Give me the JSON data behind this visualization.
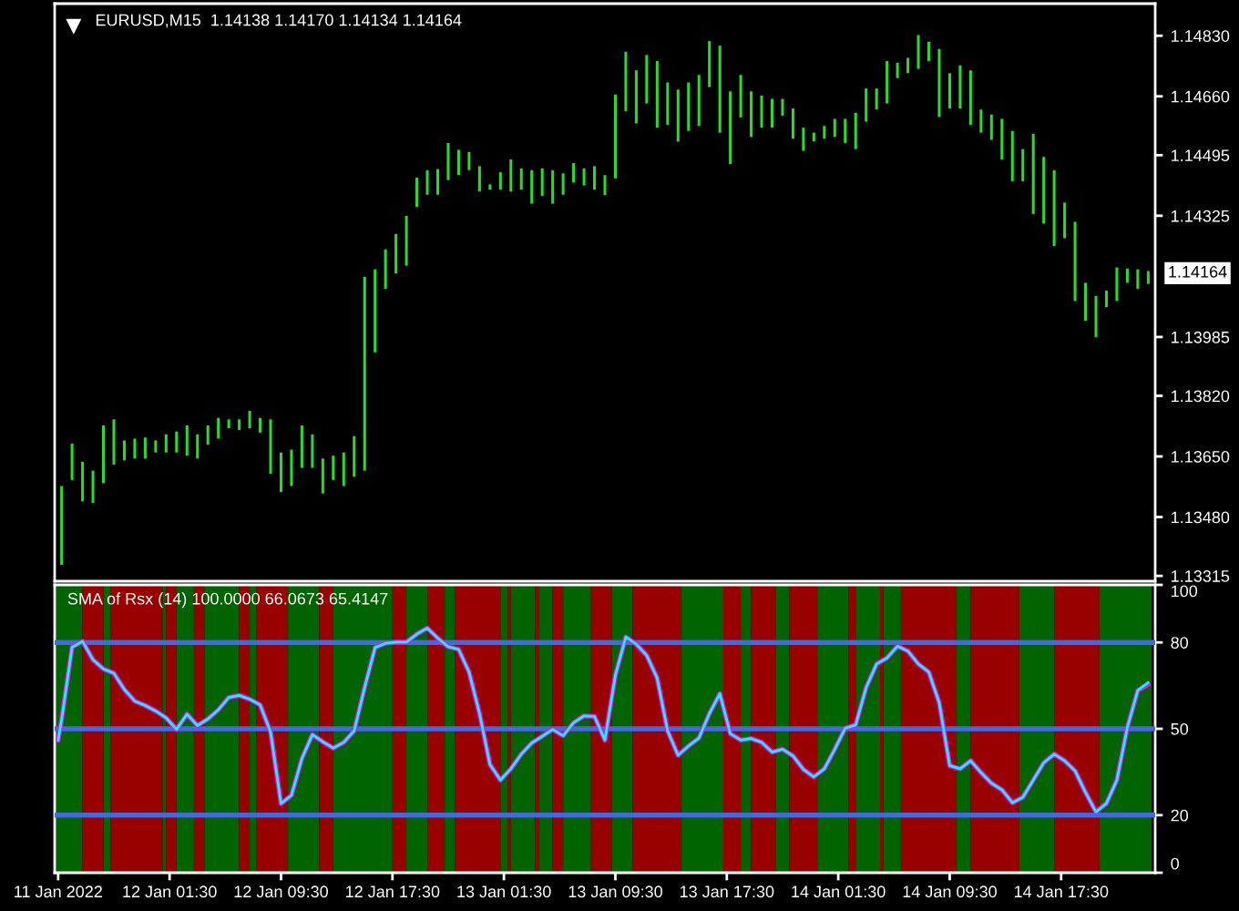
{
  "chart_data": [
    {
      "type": "bar",
      "title": "EURUSD,M15  1.14138 1.14170 1.14134 1.14164",
      "color": "#28dc28",
      "x": [
        "2022-01-11T17:45",
        "2022-01-11T18:30",
        "2022-01-11T19:15",
        "2022-01-11T20:00",
        "2022-01-11T20:45",
        "2022-01-11T21:30",
        "2022-01-11T22:15",
        "2022-01-11T23:00",
        "2022-01-11T23:45",
        "2022-01-12T00:30",
        "2022-01-12T01:15",
        "2022-01-12T02:00",
        "2022-01-12T02:45",
        "2022-01-12T03:30",
        "2022-01-12T04:15",
        "2022-01-12T05:00",
        "2022-01-12T05:45",
        "2022-01-12T06:30",
        "2022-01-12T07:15",
        "2022-01-12T08:00",
        "2022-01-12T08:45",
        "2022-01-12T09:30",
        "2022-01-12T10:15",
        "2022-01-12T11:00",
        "2022-01-12T11:45",
        "2022-01-12T12:30",
        "2022-01-12T13:15",
        "2022-01-12T14:00",
        "2022-01-12T14:45",
        "2022-01-12T15:30",
        "2022-01-12T16:15",
        "2022-01-12T17:00",
        "2022-01-12T17:45",
        "2022-01-12T18:30",
        "2022-01-12T19:15",
        "2022-01-12T20:00",
        "2022-01-12T20:45",
        "2022-01-12T21:30",
        "2022-01-12T22:15",
        "2022-01-12T23:00",
        "2022-01-12T23:45",
        "2022-01-13T00:30",
        "2022-01-13T01:15",
        "2022-01-13T02:00",
        "2022-01-13T02:45",
        "2022-01-13T03:30",
        "2022-01-13T04:15",
        "2022-01-13T05:00",
        "2022-01-13T05:45",
        "2022-01-13T06:30",
        "2022-01-13T07:15",
        "2022-01-13T08:00",
        "2022-01-13T08:45",
        "2022-01-13T09:30",
        "2022-01-13T10:15",
        "2022-01-13T11:00",
        "2022-01-13T11:45",
        "2022-01-13T12:30",
        "2022-01-13T13:15",
        "2022-01-13T14:00",
        "2022-01-13T14:45",
        "2022-01-13T15:30",
        "2022-01-13T16:15",
        "2022-01-13T17:00",
        "2022-01-13T17:45",
        "2022-01-13T18:30",
        "2022-01-13T19:15",
        "2022-01-13T20:00",
        "2022-01-13T20:45",
        "2022-01-13T21:30",
        "2022-01-13T22:15",
        "2022-01-13T23:00",
        "2022-01-13T23:45",
        "2022-01-14T00:30",
        "2022-01-14T01:15",
        "2022-01-14T02:00",
        "2022-01-14T02:45",
        "2022-01-14T03:30",
        "2022-01-14T04:15",
        "2022-01-14T05:00",
        "2022-01-14T05:45",
        "2022-01-14T06:30",
        "2022-01-14T07:15",
        "2022-01-14T08:00",
        "2022-01-14T08:45",
        "2022-01-14T09:30",
        "2022-01-14T10:15",
        "2022-01-14T11:00",
        "2022-01-14T11:45",
        "2022-01-14T12:30",
        "2022-01-14T13:15",
        "2022-01-14T14:00",
        "2022-01-14T14:45",
        "2022-01-14T15:30",
        "2022-01-14T16:15",
        "2022-01-14T17:00",
        "2022-01-14T17:45",
        "2022-01-14T18:30",
        "2022-01-14T19:15",
        "2022-01-14T20:00",
        "2022-01-14T20:45",
        "2022-01-14T21:30",
        "2022-01-14T22:15",
        "2022-01-14T23:00",
        "2022-01-14T23:45"
      ],
      "base": [
        1.13346,
        1.13584,
        1.13524,
        1.13519,
        1.13575,
        1.13627,
        1.13639,
        1.13644,
        1.13644,
        1.13661,
        1.13661,
        1.13661,
        1.13652,
        1.13644,
        1.13683,
        1.137,
        1.13729,
        1.13724,
        1.13729,
        1.13717,
        1.13601,
        1.1355,
        1.13567,
        1.13618,
        1.13618,
        1.13546,
        1.13584,
        1.13567,
        1.13593,
        1.1361,
        1.13942,
        1.1412,
        1.14163,
        1.14185,
        1.1435,
        1.14384,
        1.14384,
        1.14425,
        1.14439,
        1.14453,
        1.14393,
        1.14398,
        1.14398,
        1.14393,
        1.14398,
        1.14359,
        1.14381,
        1.14359,
        1.14384,
        1.14418,
        1.1441,
        1.14398,
        1.14383,
        1.1443,
        1.14618,
        1.14584,
        1.1464,
        1.14572,
        1.1458,
        1.14533,
        1.14563,
        1.14577,
        1.14686,
        1.14558,
        1.1447,
        1.14601,
        1.14546,
        1.14572,
        1.14572,
        1.14606,
        1.14541,
        1.14507,
        1.14534,
        1.14541,
        1.14546,
        1.14529,
        1.14512,
        1.14589,
        1.14623,
        1.1464,
        1.14711,
        1.14725,
        1.14737,
        1.14759,
        1.14602,
        1.14626,
        1.14626,
        1.1458,
        1.14558,
        1.14538,
        1.14483,
        1.14422,
        1.14422,
        1.1433,
        1.14303,
        1.1424,
        1.14262,
        1.14086,
        1.1403,
        1.13984,
        1.14069,
        1.14086,
        1.14137,
        1.1412,
        1.14134
      ],
      "values": [
        0.00221,
        0.00102,
        0.00111,
        0.00091,
        0.00162,
        0.00127,
        0.00056,
        0.00056,
        0.00059,
        0.00034,
        0.00051,
        0.00059,
        0.00085,
        0.00068,
        0.00054,
        0.00058,
        0.00025,
        0.0003,
        0.00049,
        0.00041,
        0.00153,
        0.00111,
        0.00102,
        0.00119,
        0.00094,
        0.00098,
        0.00068,
        0.00094,
        0.00114,
        0.00544,
        0.00233,
        0.00111,
        0.00111,
        0.0014,
        0.00082,
        0.00069,
        0.00072,
        0.00104,
        0.00071,
        0.00051,
        0.00071,
        0.00015,
        0.00049,
        0.0009,
        0.0006,
        0.00094,
        0.00077,
        0.00094,
        0.0006,
        0.00055,
        0.00048,
        0.00066,
        0.00056,
        0.00235,
        0.00167,
        0.00149,
        0.00136,
        0.00187,
        0.00119,
        0.00146,
        0.00136,
        0.00143,
        0.00129,
        0.00244,
        0.00204,
        0.00119,
        0.00128,
        0.0009,
        0.00081,
        0.00047,
        0.00085,
        0.00065,
        0.00024,
        0.00036,
        0.00051,
        0.00068,
        0.00102,
        0.00093,
        0.00059,
        0.00119,
        0.00043,
        0.00043,
        0.00095,
        0.00054,
        0.00191,
        0.00099,
        0.00121,
        0.00153,
        0.00065,
        0.00071,
        0.00114,
        0.00141,
        0.0009,
        0.00225,
        0.00187,
        0.00213,
        0.001,
        0.00222,
        0.00107,
        0.00116,
        0.00046,
        0.00094,
        0.0004,
        0.00055,
        0.00036
      ],
      "xlim": [
        "2022-01-11T17:15",
        "2022-01-15T00:15"
      ],
      "ylim": [
        1.133,
        1.1492
      ],
      "yticks": [
        {
          "value": 1.1483,
          "label": "1.14830"
        },
        {
          "value": 1.1466,
          "label": "1.14660"
        },
        1.14495,
        1.14325,
        1.13985,
        {
          "value": 1.1382,
          "label": "1.13820"
        },
        {
          "value": 1.1365,
          "label": "1.13650"
        },
        {
          "value": 1.1348,
          "label": "1.13480"
        },
        1.13315
      ],
      "tick_labels": "y",
      "annotations": [
        {
          "text": "1.14164",
          "x": "2022-01-14T23:45",
          "y": 1.14164
        }
      ]
    },
    {
      "type": "line",
      "title": "SMA of Rsx (14) 100.0000 66.0673 65.4147",
      "x": [
        "2022-01-11T17:30",
        "2022-01-11T17:45",
        "2022-01-11T18:30",
        "2022-01-11T19:15",
        "2022-01-11T20:00",
        "2022-01-11T20:45",
        "2022-01-11T21:30",
        "2022-01-11T22:15",
        "2022-01-11T23:00",
        "2022-01-11T23:45",
        "2022-01-12T00:30",
        "2022-01-12T01:15",
        "2022-01-12T02:00",
        "2022-01-12T02:45",
        "2022-01-12T03:30",
        "2022-01-12T04:15",
        "2022-01-12T05:00",
        "2022-01-12T05:45",
        "2022-01-12T06:30",
        "2022-01-12T07:15",
        "2022-01-12T08:00",
        "2022-01-12T08:45",
        "2022-01-12T09:30",
        "2022-01-12T10:15",
        "2022-01-12T11:00",
        "2022-01-12T11:45",
        "2022-01-12T12:30",
        "2022-01-12T13:15",
        "2022-01-12T14:00",
        "2022-01-12T14:45",
        "2022-01-12T15:30",
        "2022-01-12T16:15",
        "2022-01-12T17:00",
        "2022-01-12T17:45",
        "2022-01-12T18:30",
        "2022-01-12T19:15",
        "2022-01-12T20:00",
        "2022-01-12T20:45",
        "2022-01-12T21:30",
        "2022-01-12T22:15",
        "2022-01-12T23:00",
        "2022-01-12T23:45",
        "2022-01-13T00:30",
        "2022-01-13T01:15",
        "2022-01-13T02:00",
        "2022-01-13T02:45",
        "2022-01-13T03:30",
        "2022-01-13T04:15",
        "2022-01-13T05:00",
        "2022-01-13T05:45",
        "2022-01-13T06:30",
        "2022-01-13T07:15",
        "2022-01-13T08:00",
        "2022-01-13T08:45",
        "2022-01-13T09:30",
        "2022-01-13T10:15",
        "2022-01-13T11:00",
        "2022-01-13T11:45",
        "2022-01-13T12:30",
        "2022-01-13T13:15",
        "2022-01-13T14:00",
        "2022-01-13T14:45",
        "2022-01-13T15:30",
        "2022-01-13T16:15",
        "2022-01-13T17:00",
        "2022-01-13T17:45",
        "2022-01-13T18:30",
        "2022-01-13T19:15",
        "2022-01-13T20:00",
        "2022-01-13T20:45",
        "2022-01-13T21:30",
        "2022-01-13T22:15",
        "2022-01-13T23:00",
        "2022-01-13T23:45",
        "2022-01-14T00:30",
        "2022-01-14T01:15",
        "2022-01-14T02:00",
        "2022-01-14T02:45",
        "2022-01-14T03:30",
        "2022-01-14T04:15",
        "2022-01-14T05:00",
        "2022-01-14T05:45",
        "2022-01-14T06:30",
        "2022-01-14T07:15",
        "2022-01-14T08:00",
        "2022-01-14T08:45",
        "2022-01-14T09:30",
        "2022-01-14T10:15",
        "2022-01-14T11:00",
        "2022-01-14T11:45",
        "2022-01-14T12:30",
        "2022-01-14T13:15",
        "2022-01-14T14:00",
        "2022-01-14T14:45",
        "2022-01-14T15:30",
        "2022-01-14T16:15",
        "2022-01-14T17:00",
        "2022-01-14T17:45",
        "2022-01-14T18:30",
        "2022-01-14T19:15",
        "2022-01-14T20:00",
        "2022-01-14T20:45",
        "2022-01-14T21:30",
        "2022-01-14T22:15",
        "2022-01-14T23:00",
        "2022-01-14T23:45"
      ],
      "series": [
        {
          "color": "#ff00ff",
          "values": [
            46.0,
            53.2,
            78.3,
            80.4,
            74.0,
            70.8,
            69.3,
            63.7,
            59.6,
            58.1,
            56.2,
            53.8,
            49.8,
            55.1,
            51.1,
            53.4,
            56.6,
            60.9,
            61.6,
            60.3,
            58.3,
            48.9,
            24.0,
            26.9,
            39.7,
            48.0,
            45.5,
            43.3,
            45.3,
            49.3,
            64.3,
            78.2,
            79.7,
            80.1,
            80.1,
            82.9,
            85.0,
            81.5,
            78.5,
            77.6,
            69.7,
            55.3,
            37.6,
            32.2,
            36.1,
            41.2,
            45.1,
            47.4,
            49.8,
            47.6,
            52.1,
            54.5,
            54.3,
            46.1,
            68.6,
            81.9,
            79.4,
            75.5,
            67.6,
            49.3,
            40.8,
            44.0,
            46.8,
            55.3,
            62.2,
            48.3,
            46.1,
            46.6,
            45.3,
            41.9,
            42.9,
            40.6,
            35.9,
            33.3,
            36.1,
            42.9,
            50.2,
            51.3,
            64.3,
            72.5,
            74.6,
            78.7,
            77.0,
            72.5,
            69.7,
            59.0,
            37.2,
            36.1,
            38.9,
            34.8,
            31.1,
            28.8,
            24.3,
            26.2,
            32.2,
            38.2,
            41.2,
            38.9,
            35.4,
            27.9,
            21.1,
            24.1,
            32.2,
            50.4,
            63.3,
            65.4
          ]
        },
        {
          "color": "#00ffff",
          "values": [
            46.0,
            53.2,
            78.3,
            80.4,
            74.0,
            70.8,
            69.3,
            63.7,
            59.6,
            58.1,
            56.2,
            53.8,
            49.8,
            55.1,
            51.1,
            53.4,
            56.6,
            60.9,
            61.6,
            60.3,
            58.3,
            48.9,
            24.0,
            26.9,
            39.7,
            48.0,
            45.5,
            43.3,
            45.3,
            49.3,
            64.3,
            78.2,
            79.7,
            80.1,
            80.1,
            82.9,
            85.0,
            81.5,
            78.5,
            77.6,
            69.7,
            55.3,
            37.6,
            32.2,
            36.1,
            41.2,
            45.1,
            47.4,
            49.8,
            47.6,
            52.1,
            54.5,
            54.3,
            46.1,
            68.6,
            81.9,
            79.4,
            75.5,
            67.6,
            49.3,
            40.8,
            44.0,
            46.8,
            55.3,
            62.2,
            48.3,
            46.1,
            46.6,
            45.3,
            41.9,
            42.9,
            40.6,
            35.9,
            33.3,
            36.1,
            42.9,
            50.2,
            51.3,
            64.3,
            72.5,
            74.6,
            78.7,
            77.0,
            72.5,
            69.7,
            59.0,
            37.2,
            36.1,
            38.9,
            34.8,
            31.1,
            28.8,
            24.3,
            26.2,
            32.2,
            38.2,
            41.2,
            38.9,
            35.4,
            27.9,
            21.1,
            24.1,
            32.2,
            50.4,
            63.3,
            66.1
          ]
        }
      ],
      "xlim": [
        "2022-01-11T17:15",
        "2022-01-15T00:15"
      ],
      "ylim": [
        0,
        100
      ],
      "xticks": [
        {
          "value": "2022-01-11T17:30",
          "label": "11 Jan 2022"
        },
        {
          "value": "2022-01-12T01:30",
          "label": "12 Jan 01:30"
        },
        {
          "value": "2022-01-12T09:30",
          "label": "12 Jan 09:30"
        },
        {
          "value": "2022-01-12T17:30",
          "label": "12 Jan 17:30"
        },
        {
          "value": "2022-01-13T01:30",
          "label": "13 Jan 01:30"
        },
        {
          "value": "2022-01-13T09:30",
          "label": "13 Jan 09:30"
        },
        {
          "value": "2022-01-13T17:30",
          "label": "13 Jan 17:30"
        },
        {
          "value": "2022-01-14T01:30",
          "label": "14 Jan 01:30"
        },
        {
          "value": "2022-01-14T09:30",
          "label": "14 Jan 09:30"
        },
        {
          "value": "2022-01-14T17:30",
          "label": "14 Jan 17:30"
        }
      ],
      "yticks": [
        0,
        20,
        50,
        80,
        100
      ],
      "ref_lines": [
        {
          "axis": "y",
          "value": 80,
          "color": "#4169e1"
        },
        {
          "axis": "y",
          "value": 50,
          "color": "#4169e1"
        },
        {
          "axis": "y",
          "value": 20,
          "color": "#4169e1"
        }
      ],
      "bands": [
        {
          "axis": "x",
          "from": "2022-01-11T17:15",
          "to": "2022-01-11T19:15",
          "color": "#006400"
        },
        {
          "axis": "x",
          "from": "2022-01-11T19:15",
          "to": "2022-01-11T20:45",
          "color": "#990000"
        },
        {
          "axis": "x",
          "from": "2022-01-11T20:45",
          "to": "2022-01-11T21:15",
          "color": "#006400"
        },
        {
          "axis": "x",
          "from": "2022-01-11T21:15",
          "to": "2022-01-12T01:00",
          "color": "#990000"
        },
        {
          "axis": "x",
          "from": "2022-01-12T01:00",
          "to": "2022-01-12T01:15",
          "color": "#006400"
        },
        {
          "axis": "x",
          "from": "2022-01-12T01:15",
          "to": "2022-01-12T02:00",
          "color": "#990000"
        },
        {
          "axis": "x",
          "from": "2022-01-12T02:00",
          "to": "2022-01-12T03:15",
          "color": "#006400"
        },
        {
          "axis": "x",
          "from": "2022-01-12T03:15",
          "to": "2022-01-12T04:00",
          "color": "#990000"
        },
        {
          "axis": "x",
          "from": "2022-01-12T04:00",
          "to": "2022-01-12T06:30",
          "color": "#006400"
        },
        {
          "axis": "x",
          "from": "2022-01-12T06:30",
          "to": "2022-01-12T07:15",
          "color": "#990000"
        },
        {
          "axis": "x",
          "from": "2022-01-12T07:15",
          "to": "2022-01-12T07:45",
          "color": "#006400"
        },
        {
          "axis": "x",
          "from": "2022-01-12T07:45",
          "to": "2022-01-12T10:00",
          "color": "#990000"
        },
        {
          "axis": "x",
          "from": "2022-01-12T10:00",
          "to": "2022-01-12T12:15",
          "color": "#006400"
        },
        {
          "axis": "x",
          "from": "2022-01-12T12:15",
          "to": "2022-01-12T13:15",
          "color": "#990000"
        },
        {
          "axis": "x",
          "from": "2022-01-12T13:15",
          "to": "2022-01-12T17:30",
          "color": "#006400"
        },
        {
          "axis": "x",
          "from": "2022-01-12T17:30",
          "to": "2022-01-12T18:30",
          "color": "#990000"
        },
        {
          "axis": "x",
          "from": "2022-01-12T18:30",
          "to": "2022-01-12T20:00",
          "color": "#006400"
        },
        {
          "axis": "x",
          "from": "2022-01-12T20:00",
          "to": "2022-01-12T21:15",
          "color": "#990000"
        },
        {
          "axis": "x",
          "from": "2022-01-12T21:15",
          "to": "2022-01-12T22:00",
          "color": "#006400"
        },
        {
          "axis": "x",
          "from": "2022-01-12T22:00",
          "to": "2022-01-13T01:15",
          "color": "#990000"
        },
        {
          "axis": "x",
          "from": "2022-01-13T01:15",
          "to": "2022-01-13T01:45",
          "color": "#006400"
        },
        {
          "axis": "x",
          "from": "2022-01-13T01:45",
          "to": "2022-01-13T02:00",
          "color": "#990000"
        },
        {
          "axis": "x",
          "from": "2022-01-13T02:00",
          "to": "2022-01-13T03:45",
          "color": "#006400"
        },
        {
          "axis": "x",
          "from": "2022-01-13T03:45",
          "to": "2022-01-13T04:00",
          "color": "#990000"
        },
        {
          "axis": "x",
          "from": "2022-01-13T04:00",
          "to": "2022-01-13T05:00",
          "color": "#006400"
        },
        {
          "axis": "x",
          "from": "2022-01-13T05:00",
          "to": "2022-01-13T05:45",
          "color": "#990000"
        },
        {
          "axis": "x",
          "from": "2022-01-13T05:45",
          "to": "2022-01-13T07:45",
          "color": "#006400"
        },
        {
          "axis": "x",
          "from": "2022-01-13T07:45",
          "to": "2022-01-13T09:15",
          "color": "#990000"
        },
        {
          "axis": "x",
          "from": "2022-01-13T09:15",
          "to": "2022-01-13T10:45",
          "color": "#006400"
        },
        {
          "axis": "x",
          "from": "2022-01-13T10:45",
          "to": "2022-01-13T14:15",
          "color": "#990000"
        },
        {
          "axis": "x",
          "from": "2022-01-13T14:15",
          "to": "2022-01-13T17:15",
          "color": "#006400"
        },
        {
          "axis": "x",
          "from": "2022-01-13T17:15",
          "to": "2022-01-13T18:30",
          "color": "#990000"
        },
        {
          "axis": "x",
          "from": "2022-01-13T18:30",
          "to": "2022-01-13T19:15",
          "color": "#006400"
        },
        {
          "axis": "x",
          "from": "2022-01-13T19:15",
          "to": "2022-01-13T21:00",
          "color": "#990000"
        },
        {
          "axis": "x",
          "from": "2022-01-13T21:00",
          "to": "2022-01-13T22:00",
          "color": "#006400"
        },
        {
          "axis": "x",
          "from": "2022-01-13T22:00",
          "to": "2022-01-14T00:00",
          "color": "#990000"
        },
        {
          "axis": "x",
          "from": "2022-01-14T00:00",
          "to": "2022-01-14T02:15",
          "color": "#006400"
        },
        {
          "axis": "x",
          "from": "2022-01-14T02:15",
          "to": "2022-01-14T02:45",
          "color": "#990000"
        },
        {
          "axis": "x",
          "from": "2022-01-14T02:45",
          "to": "2022-01-14T04:30",
          "color": "#006400"
        },
        {
          "axis": "x",
          "from": "2022-01-14T04:30",
          "to": "2022-01-14T04:45",
          "color": "#990000"
        },
        {
          "axis": "x",
          "from": "2022-01-14T04:45",
          "to": "2022-01-14T06:00",
          "color": "#006400"
        },
        {
          "axis": "x",
          "from": "2022-01-14T06:00",
          "to": "2022-01-14T10:00",
          "color": "#990000"
        },
        {
          "axis": "x",
          "from": "2022-01-14T10:00",
          "to": "2022-01-14T11:00",
          "color": "#006400"
        },
        {
          "axis": "x",
          "from": "2022-01-14T11:00",
          "to": "2022-01-14T14:30",
          "color": "#990000"
        },
        {
          "axis": "x",
          "from": "2022-01-14T14:30",
          "to": "2022-01-14T17:00",
          "color": "#006400"
        },
        {
          "axis": "x",
          "from": "2022-01-14T17:00",
          "to": "2022-01-14T20:15",
          "color": "#990000"
        },
        {
          "axis": "x",
          "from": "2022-01-14T20:15",
          "to": "2022-01-15T00:00",
          "color": "#006400"
        }
      ]
    }
  ]
}
